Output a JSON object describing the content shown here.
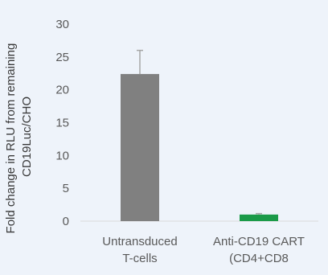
{
  "chart_data": {
    "type": "bar",
    "title": "",
    "xlabel": "",
    "ylabel_lines": [
      "Fold change in RLU from remaining",
      "CD19Luc/CHO"
    ],
    "ylim": [
      0,
      30
    ],
    "yticks": [
      0,
      5,
      10,
      15,
      20,
      25,
      30
    ],
    "grid": false,
    "legend": "none",
    "categories": [
      [
        "Untransduced",
        "T-cells"
      ],
      [
        "Anti-CD19 CART",
        "(CD4+CD8"
      ]
    ],
    "values": [
      22.4,
      1.0
    ],
    "errors": [
      3.6,
      0.15
    ],
    "colors": [
      "#808080",
      "#1a9a48"
    ],
    "error_color": "#a6a6a6",
    "axis_color": "#d9d9d9",
    "text_color": "#595959"
  }
}
